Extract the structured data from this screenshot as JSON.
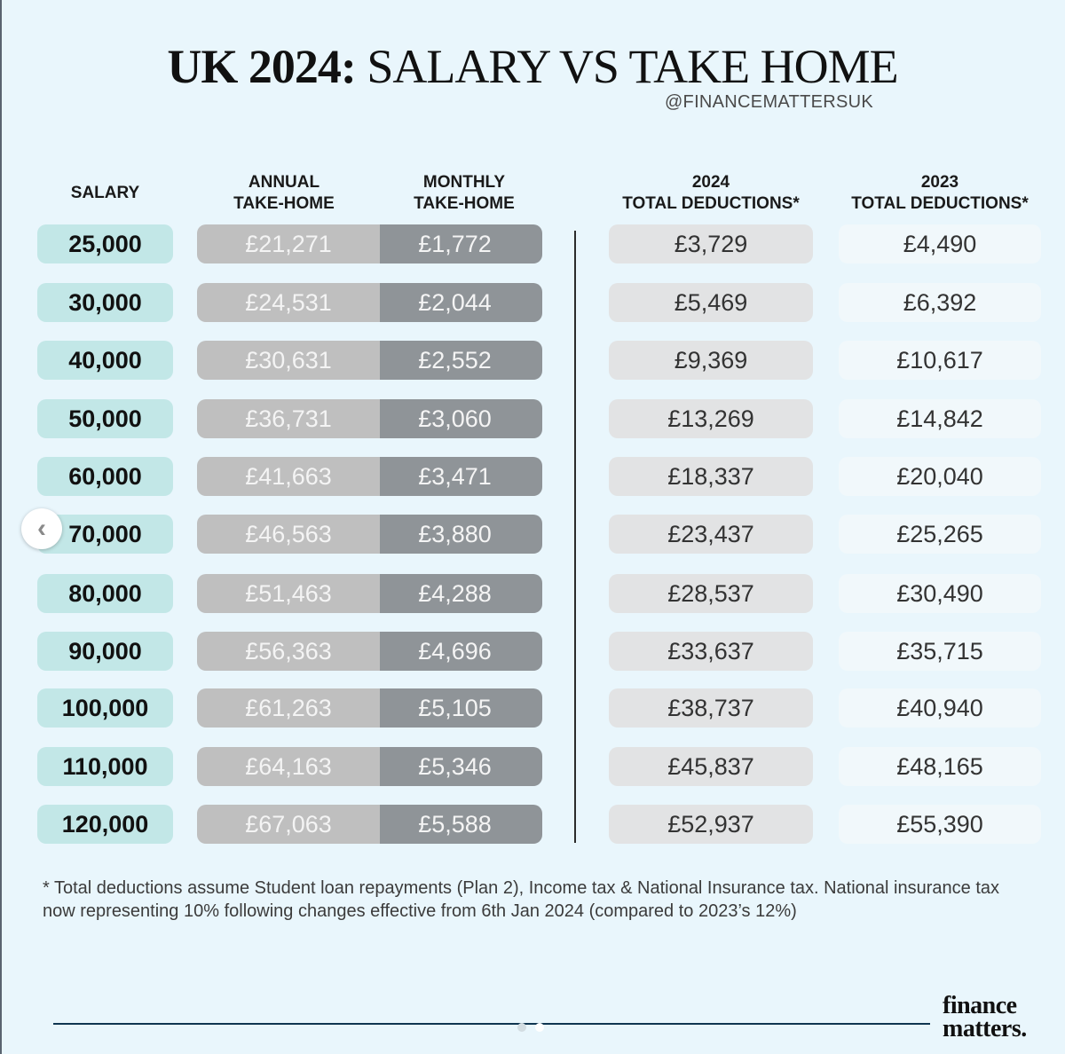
{
  "title": {
    "bold": "UK 2024:",
    "rest": " SALARY VS TAKE HOME"
  },
  "handle": "@FINANCEMATTERSUK",
  "headers": {
    "salary": "SALARY",
    "annual_1": "ANNUAL",
    "annual_2": "TAKE-HOME",
    "monthly_1": "MONTHLY",
    "monthly_2": "TAKE-HOME",
    "ded24_1": "2024",
    "ded24_2": "TOTAL DEDUCTIONS*",
    "ded23_1": "2023",
    "ded23_2": "TOTAL DEDUCTIONS*"
  },
  "rows": [
    {
      "salary": "25,000",
      "annual": "£21,271",
      "monthly": "£1,772",
      "ded2024": "£3,729",
      "ded2023": "£4,490"
    },
    {
      "salary": "30,000",
      "annual": "£24,531",
      "monthly": "£2,044",
      "ded2024": "£5,469",
      "ded2023": "£6,392"
    },
    {
      "salary": "40,000",
      "annual": "£30,631",
      "monthly": "£2,552",
      "ded2024": "£9,369",
      "ded2023": "£10,617"
    },
    {
      "salary": "50,000",
      "annual": "£36,731",
      "monthly": "£3,060",
      "ded2024": "£13,269",
      "ded2023": "£14,842"
    },
    {
      "salary": "60,000",
      "annual": "£41,663",
      "monthly": "£3,471",
      "ded2024": "£18,337",
      "ded2023": "£20,040"
    },
    {
      "salary": "70,000",
      "annual": "£46,563",
      "monthly": "£3,880",
      "ded2024": "£23,437",
      "ded2023": "£25,265"
    },
    {
      "salary": "80,000",
      "annual": "£51,463",
      "monthly": "£4,288",
      "ded2024": "£28,537",
      "ded2023": "£30,490"
    },
    {
      "salary": "90,000",
      "annual": "£56,363",
      "monthly": "£4,696",
      "ded2024": "£33,637",
      "ded2023": "£35,715"
    },
    {
      "salary": "100,000",
      "annual": "£61,263",
      "monthly": "£5,105",
      "ded2024": "£38,737",
      "ded2023": "£40,940"
    },
    {
      "salary": "110,000",
      "annual": "£64,163",
      "monthly": "£5,346",
      "ded2024": "£45,837",
      "ded2023": "£48,165"
    },
    {
      "salary": "120,000",
      "annual": "£67,063",
      "monthly": "£5,588",
      "ded2024": "£52,937",
      "ded2023": "£55,390"
    }
  ],
  "footnote": "* Total deductions assume Student loan repayments (Plan 2), Income tax & National Insurance tax. National insurance  tax now representing 10% following changes effective from 6th Jan 2024 (compared to 2023’s 12%)",
  "brand": {
    "line1": "finance",
    "line2": "matters."
  },
  "nav": {
    "prev_icon": "chevron-left-icon"
  },
  "carousel": {
    "pages": 2,
    "active": 2
  }
}
